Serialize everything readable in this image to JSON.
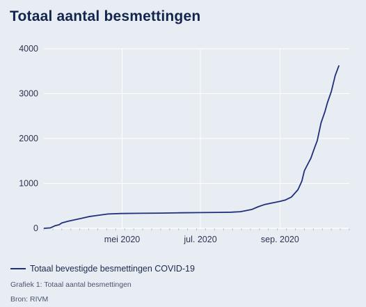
{
  "header": {
    "title": "Totaal aantal besmettingen"
  },
  "legend": {
    "label": "Totaal bevestigde besmettingen COVID-19"
  },
  "captions": {
    "figure": "Grafiek 1: Totaal aantal besmettingen",
    "source": "Bron: RIVM"
  },
  "colors": {
    "line": "#1f2f7a",
    "background": "#e8ecf3",
    "grid": "#ffffff"
  },
  "chart_data": {
    "type": "line",
    "title": "Totaal aantal besmettingen",
    "xlabel": "",
    "ylabel": "",
    "xlim": [
      "2020-03-01",
      "2020-10-25"
    ],
    "ylim": [
      0,
      4000
    ],
    "yticks": [
      0,
      1000,
      2000,
      3000,
      4000
    ],
    "xticks": [
      {
        "date": "2020-05-01",
        "label": "mei 2020"
      },
      {
        "date": "2020-07-01",
        "label": "jul. 2020"
      },
      {
        "date": "2020-09-01",
        "label": "sep. 2020"
      }
    ],
    "grid": "vertical at x ticks, horizontal at y ticks",
    "legend_position": "bottom-left",
    "series": [
      {
        "name": "Totaal bevestigde besmettingen COVID-19",
        "points": [
          [
            "2020-03-01",
            0
          ],
          [
            "2020-03-06",
            10
          ],
          [
            "2020-03-10",
            60
          ],
          [
            "2020-03-13",
            80
          ],
          [
            "2020-03-15",
            120
          ],
          [
            "2020-03-20",
            160
          ],
          [
            "2020-03-25",
            190
          ],
          [
            "2020-03-30",
            220
          ],
          [
            "2020-04-05",
            260
          ],
          [
            "2020-04-10",
            280
          ],
          [
            "2020-04-15",
            300
          ],
          [
            "2020-04-20",
            320
          ],
          [
            "2020-04-30",
            330
          ],
          [
            "2020-05-15",
            335
          ],
          [
            "2020-06-01",
            340
          ],
          [
            "2020-06-15",
            345
          ],
          [
            "2020-07-01",
            350
          ],
          [
            "2020-07-15",
            355
          ],
          [
            "2020-07-25",
            360
          ],
          [
            "2020-08-01",
            370
          ],
          [
            "2020-08-05",
            390
          ],
          [
            "2020-08-10",
            420
          ],
          [
            "2020-08-15",
            480
          ],
          [
            "2020-08-20",
            530
          ],
          [
            "2020-08-25",
            560
          ],
          [
            "2020-09-01",
            600
          ],
          [
            "2020-09-05",
            630
          ],
          [
            "2020-09-10",
            700
          ],
          [
            "2020-09-15",
            860
          ],
          [
            "2020-09-18",
            1050
          ],
          [
            "2020-09-20",
            1280
          ],
          [
            "2020-09-23",
            1450
          ],
          [
            "2020-09-25",
            1560
          ],
          [
            "2020-09-28",
            1800
          ],
          [
            "2020-09-30",
            1950
          ],
          [
            "2020-10-03",
            2350
          ],
          [
            "2020-10-06",
            2600
          ],
          [
            "2020-10-08",
            2800
          ],
          [
            "2020-10-11",
            3050
          ],
          [
            "2020-10-14",
            3400
          ],
          [
            "2020-10-17",
            3630
          ]
        ]
      }
    ]
  }
}
